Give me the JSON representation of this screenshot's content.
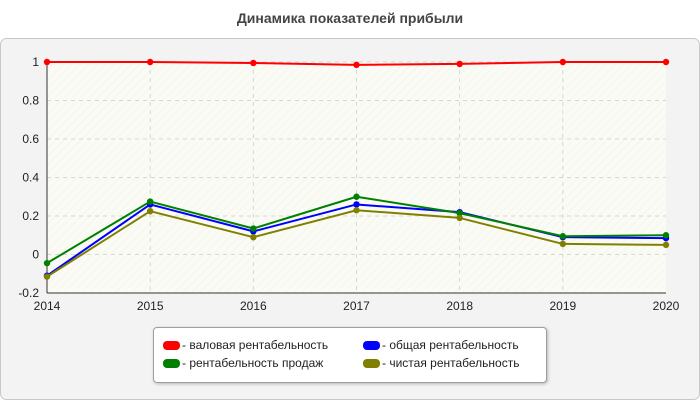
{
  "chart_data": {
    "type": "line",
    "title": "Динамика показателей прибыли",
    "x": [
      "2014",
      "2015",
      "2016",
      "2017",
      "2018",
      "2019",
      "2020"
    ],
    "ylim": [
      -0.2,
      1.0
    ],
    "yticks": [
      -0.2,
      0,
      0.2,
      0.4,
      0.6,
      0.8,
      1.0
    ],
    "ytick_labels": [
      "-0.2",
      "0",
      "0.2",
      "0.4",
      "0.6",
      "0.8",
      "1"
    ],
    "grid": true,
    "legend_position": "bottom-center",
    "series": [
      {
        "name": "- валовая рентабельность",
        "color": "#ff0000",
        "values": [
          1.0,
          1.0,
          0.995,
          0.985,
          0.99,
          1.0,
          1.0
        ]
      },
      {
        "name": "- общая рентабельность",
        "color": "#0000ff",
        "values": [
          -0.11,
          0.26,
          0.12,
          0.26,
          0.22,
          0.09,
          0.085
        ]
      },
      {
        "name": "- рентабельность продаж",
        "color": "#008000",
        "values": [
          -0.045,
          0.275,
          0.135,
          0.3,
          0.215,
          0.095,
          0.1
        ]
      },
      {
        "name": "- чистая рентабельность",
        "color": "#808000",
        "values": [
          -0.115,
          0.225,
          0.09,
          0.23,
          0.19,
          0.055,
          0.05
        ]
      }
    ]
  }
}
